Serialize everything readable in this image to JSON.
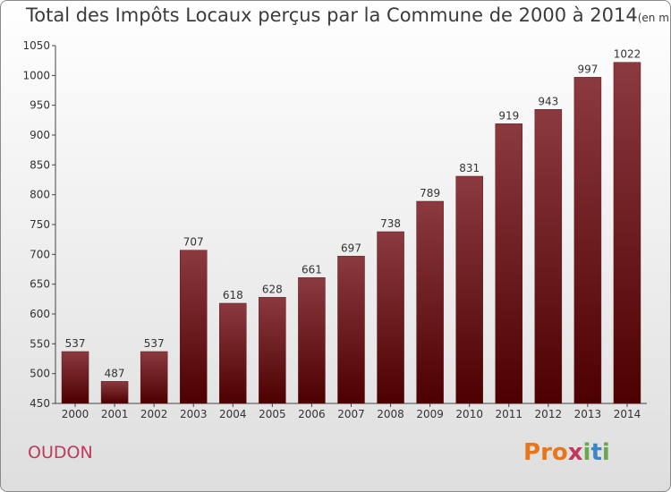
{
  "title": "Total des Impôts Locaux perçus par la Commune de 2000 à 2014",
  "title_unit": "(en milliers d'€)",
  "commune": "OUDON",
  "logo": "Proxiti",
  "colors": {
    "bar_top": "#8b3a3f",
    "bar_bottom": "#4d0000",
    "commune": "#c0395a",
    "logo": [
      "#e8751a",
      "#e8751a",
      "#e8751a",
      "#c0395a",
      "#6aa84f",
      "#3d85c6",
      "#6aa84f"
    ]
  },
  "chart_data": {
    "type": "bar",
    "title": "Total des Impôts Locaux perçus par la Commune de 2000 à 2014",
    "xlabel": "",
    "ylabel": "",
    "categories": [
      "2000",
      "2001",
      "2002",
      "2003",
      "2004",
      "2005",
      "2006",
      "2007",
      "2008",
      "2009",
      "2010",
      "2011",
      "2012",
      "2013",
      "2014"
    ],
    "values": [
      537,
      487,
      537,
      707,
      618,
      628,
      661,
      697,
      738,
      789,
      831,
      919,
      943,
      997,
      1022
    ],
    "ylim": [
      450,
      1050
    ],
    "yticks": [
      450,
      500,
      550,
      600,
      650,
      700,
      750,
      800,
      850,
      900,
      950,
      1000,
      1050
    ],
    "grid": false
  }
}
